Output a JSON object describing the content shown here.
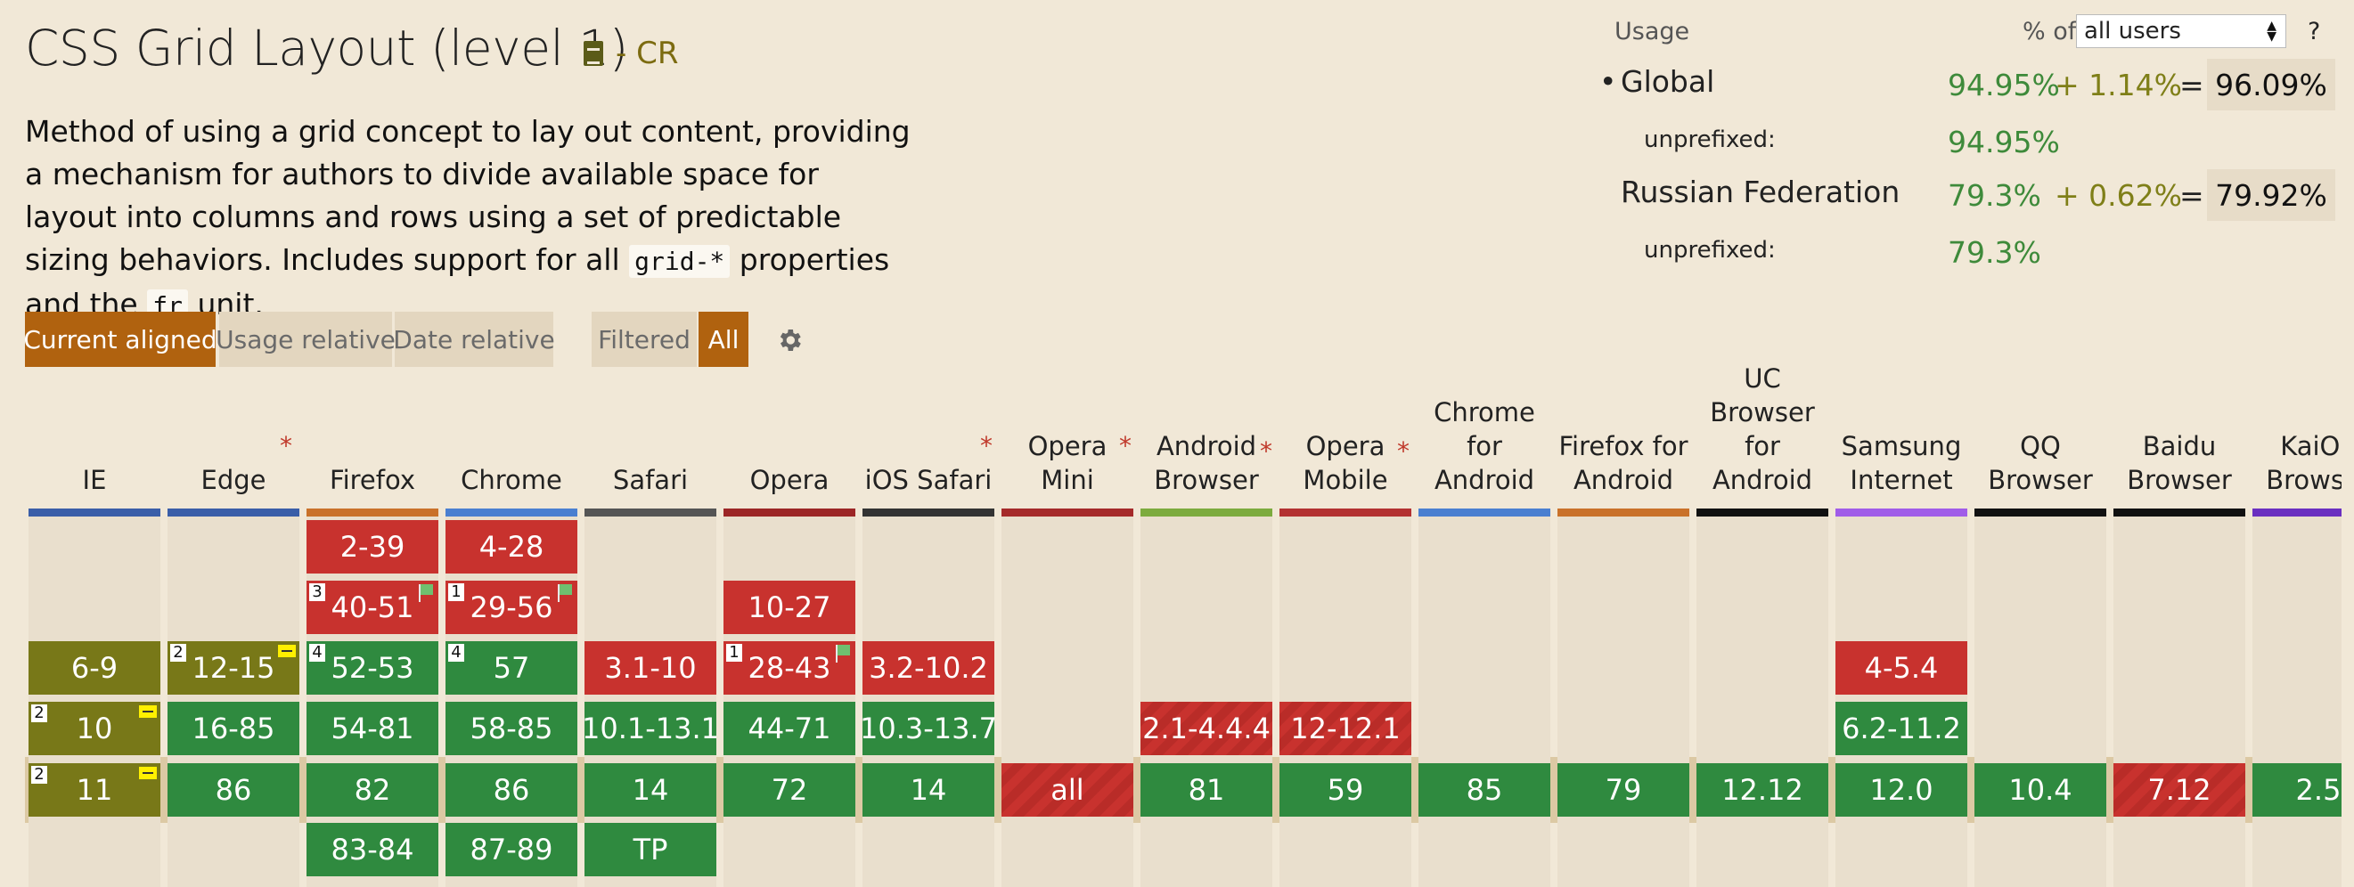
{
  "feature": {
    "title": "CSS Grid Layout (level 1)",
    "status": "- CR",
    "description_parts": [
      "Method of using a grid concept to lay out content, providing a mechanism for authors to divide available space for layout into columns and rows using a set of predictable sizing behaviors. Includes support for all ",
      "grid-*",
      " properties and the ",
      "fr",
      " unit."
    ]
  },
  "view_buttons": [
    "Current aligned",
    "Usage relative",
    "Date relative"
  ],
  "filter_buttons": [
    "Filtered",
    "All"
  ],
  "usage": {
    "label": "Usage",
    "pct_of_label": "% of",
    "select_value": "all users",
    "help": "?",
    "global": {
      "name": "Global",
      "supported": "94.95%",
      "partial": "+ 1.14%",
      "equals": "=",
      "total": "96.09%",
      "unprefixed_label": "unprefixed:",
      "unprefixed": "94.95%"
    },
    "region": {
      "name": "Russian Federation",
      "supported": "79.3%",
      "partial": "+ 0.62%",
      "equals": "=",
      "total": "79.92%",
      "unprefixed_label": "unprefixed:",
      "unprefixed": "79.3%"
    }
  },
  "colors": {
    "supported": "#2f8a3f",
    "unsupported": "#c8322e",
    "partial": "#787818",
    "accent": "#b0620f"
  },
  "browsers": [
    {
      "name": "IE",
      "bar": "#3a5ea8",
      "cells": [
        "",
        "",
        "6-9",
        "10",
        "11",
        ""
      ]
    },
    {
      "name": "Edge",
      "bar": "#3a5ea8",
      "cells": [
        "",
        "",
        "12-15",
        "16-85",
        "86",
        ""
      ]
    },
    {
      "name": "Firefox",
      "bar": "#c9712a",
      "cells": [
        "2-39",
        "40-51",
        "52-53",
        "54-81",
        "82",
        "83-84"
      ]
    },
    {
      "name": "Chrome",
      "bar": "#4a7fd0",
      "cells": [
        "4-28",
        "29-56",
        "57",
        "58-85",
        "86",
        "87-89"
      ]
    },
    {
      "name": "Safari",
      "bar": "#555555",
      "cells": [
        "",
        "",
        "3.1-10",
        "10.1-13.1",
        "14",
        "TP"
      ]
    },
    {
      "name": "Opera",
      "bar": "#9c2626",
      "cells": [
        "",
        "10-27",
        "28-43",
        "44-71",
        "72",
        ""
      ]
    },
    {
      "name": "iOS Safari",
      "bar": "#333333",
      "cells": [
        "",
        "",
        "3.2-10.2",
        "10.3-13.7",
        "14",
        ""
      ]
    },
    {
      "name": "Opera Mini",
      "bar": "#a52a2a",
      "cells": [
        "",
        "",
        "",
        "",
        "all",
        ""
      ]
    },
    {
      "name": "Android Browser",
      "bar": "#7cab3e",
      "cells": [
        "",
        "",
        "",
        "2.1-4.4.4",
        "81",
        ""
      ]
    },
    {
      "name": "Opera Mobile",
      "bar": "#b33131",
      "cells": [
        "",
        "",
        "",
        "12-12.1",
        "59",
        ""
      ]
    },
    {
      "name": "Chrome for Android",
      "bar": "#4a7fd0",
      "cells": [
        "",
        "",
        "",
        "",
        "85",
        ""
      ]
    },
    {
      "name": "Firefox for Android",
      "bar": "#c9712a",
      "cells": [
        "",
        "",
        "",
        "",
        "79",
        ""
      ]
    },
    {
      "name": "UC Browser for Android",
      "bar": "#111111",
      "cells": [
        "",
        "",
        "",
        "",
        "12.12",
        ""
      ]
    },
    {
      "name": "Samsung Internet",
      "bar": "#a05ce8",
      "cells": [
        "",
        "",
        "4-5.4",
        "6.2-11.2",
        "12.0",
        ""
      ]
    },
    {
      "name": "QQ Browser",
      "bar": "#111111",
      "cells": [
        "",
        "",
        "",
        "",
        "10.4",
        ""
      ]
    },
    {
      "name": "Baidu Browser",
      "bar": "#111111",
      "cells": [
        "",
        "",
        "",
        "",
        "7.12",
        ""
      ]
    },
    {
      "name": "KaiOS Browser",
      "bar": "#6a2fc0",
      "cells": [
        "",
        "",
        "",
        "",
        "2.5",
        ""
      ]
    }
  ]
}
